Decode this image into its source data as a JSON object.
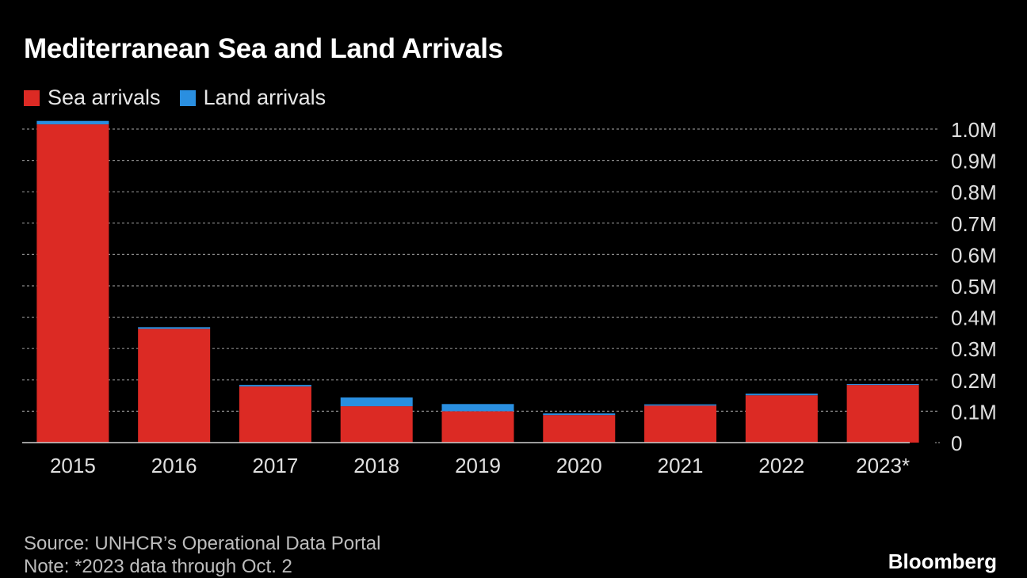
{
  "chart_data": {
    "type": "bar",
    "stacked": true,
    "title": "Mediterranean Sea and Land Arrivals",
    "categories": [
      "2015",
      "2016",
      "2017",
      "2018",
      "2019",
      "2020",
      "2021",
      "2022",
      "2023*"
    ],
    "series": [
      {
        "name": "Sea arrivals",
        "color": "#dc2a24",
        "values": [
          1015000,
          363000,
          179000,
          116000,
          100000,
          88000,
          118000,
          151000,
          184000
        ]
      },
      {
        "name": "Land arrivals",
        "color": "#2a8fe0",
        "values": [
          11000,
          5000,
          5000,
          28000,
          23000,
          5000,
          4000,
          5000,
          3000
        ]
      }
    ],
    "y_ticks": [
      {
        "value": 1000000,
        "label": "1.0M"
      },
      {
        "value": 900000,
        "label": "0.9M"
      },
      {
        "value": 800000,
        "label": "0.8M"
      },
      {
        "value": 700000,
        "label": "0.7M"
      },
      {
        "value": 600000,
        "label": "0.6M"
      },
      {
        "value": 500000,
        "label": "0.5M"
      },
      {
        "value": 400000,
        "label": "0.4M"
      },
      {
        "value": 300000,
        "label": "0.3M"
      },
      {
        "value": 200000,
        "label": "0.2M"
      },
      {
        "value": 100000,
        "label": "0.1M"
      },
      {
        "value": 0,
        "label": "0"
      }
    ],
    "ylim": [
      0,
      1000000
    ],
    "grid": true,
    "legend_position": "top-left",
    "y_axis_side": "right"
  },
  "source": "Source: UNHCR’s Operational Data Portal",
  "note": "Note: *2023 data through Oct. 2",
  "brand": "Bloomberg"
}
